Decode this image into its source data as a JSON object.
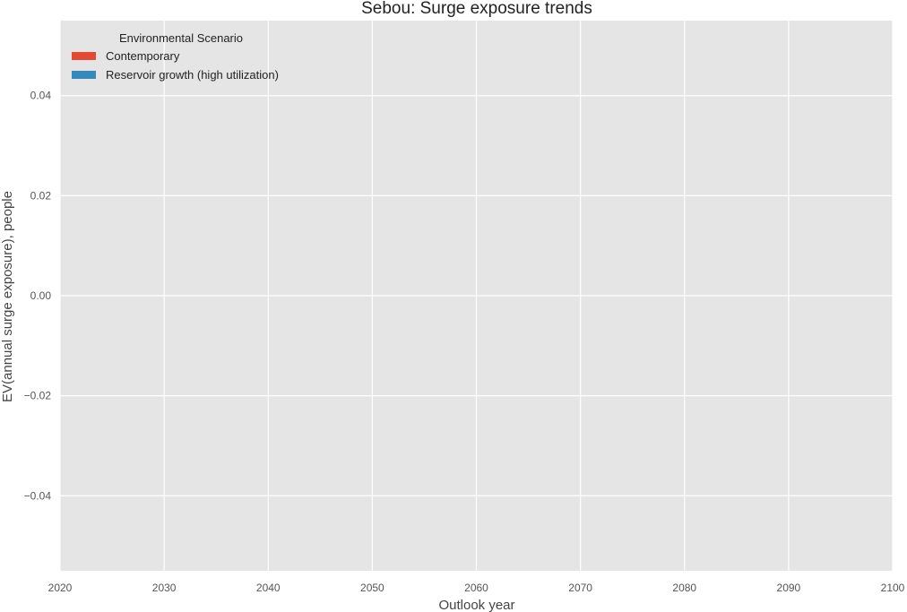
{
  "chart_data": {
    "type": "area",
    "title": "Sebou: Surge exposure trends",
    "xlabel": "Outlook year",
    "ylabel": "EV(annual surge exposure), people",
    "xlim": [
      2020,
      2100
    ],
    "ylim": [
      -0.055,
      0.055
    ],
    "x_ticks": [
      2020,
      2030,
      2040,
      2050,
      2060,
      2070,
      2080,
      2090,
      2100
    ],
    "y_ticks": [
      -0.04,
      -0.02,
      0.0,
      0.02,
      0.04
    ],
    "y_tick_labels": [
      "−0.04",
      "−0.02",
      "0.00",
      "0.02",
      "0.04"
    ],
    "grid": true,
    "legend_title": "Environmental Scenario",
    "legend_position": "top-left",
    "series": [
      {
        "name": "Contemporary",
        "color": "#E24A33",
        "x": [],
        "values": []
      },
      {
        "name": "Reservoir growth (high utilization)",
        "color": "#348ABD",
        "x": [],
        "values": []
      }
    ]
  }
}
